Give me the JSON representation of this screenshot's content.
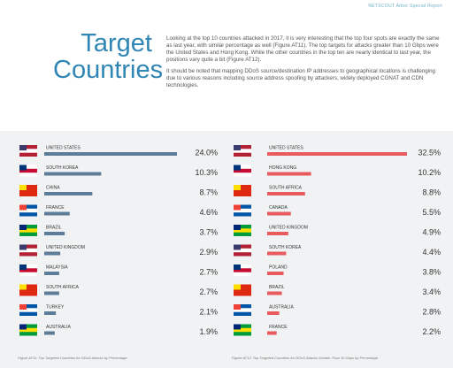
{
  "header": {
    "report": "NETSCOUT Arbor Special Report"
  },
  "title": "Target Countries",
  "body": [
    "Looking at the top 10 countries attacked in 2017, it is very interesting that the top four spots are exactly the same as last year, with similar percentage as well (Figure AT11). The top targets for attacks greater than 10 Gbps were the United States and Hong Kong. While the other countries in the top ten are nearly identical to last year, the positions vary quite a bit (Figure AT12).",
    "It should be noted that mapping DDoS source/destination IP addresses to geographical locations is challenging due to various reasons including source address spoofing by attackers, widely deployed CGNAT and CDN technologies."
  ],
  "chart_data": [
    {
      "type": "bar",
      "orientation": "horizontal",
      "caption": "Figure AT11: Top Targeted Countries for DDoS Attacks by Percentage",
      "categories": [
        "UNITED STATES",
        "SOUTH KOREA",
        "CHINA",
        "FRANCE",
        "BRAZIL",
        "UNITED KINGDOM",
        "MALAYSIA",
        "SOUTH AFRICA",
        "TURKEY",
        "AUSTRALIA"
      ],
      "values": [
        24.0,
        10.3,
        8.7,
        4.6,
        3.7,
        2.9,
        2.7,
        2.7,
        2.1,
        1.9
      ],
      "value_labels": [
        "24.0%",
        "10.3%",
        "8.7%",
        "4.6%",
        "3.7%",
        "2.9%",
        "2.7%",
        "2.7%",
        "2.1%",
        "1.9%"
      ],
      "color": "#5d7c98"
    },
    {
      "type": "bar",
      "orientation": "horizontal",
      "caption": "Figure AT12: Top Targeted Countries for DDoS Attacks Greater Than 10 Gbps by Percentage",
      "categories": [
        "UNITED STATES",
        "HONG KONG",
        "SOUTH AFRICA",
        "CANADA",
        "UNITED KINGDOM",
        "SOUTH KOREA",
        "POLAND",
        "BRAZIL",
        "AUSTRALIA",
        "FRANCE"
      ],
      "values": [
        32.5,
        10.2,
        8.8,
        5.5,
        4.9,
        4.4,
        3.8,
        3.4,
        2.8,
        2.2
      ],
      "value_labels": [
        "32.5%",
        "10.2%",
        "8.8%",
        "5.5%",
        "4.9%",
        "4.4%",
        "3.8%",
        "3.4%",
        "2.8%",
        "2.2%"
      ],
      "color": "#e85a5c"
    }
  ]
}
